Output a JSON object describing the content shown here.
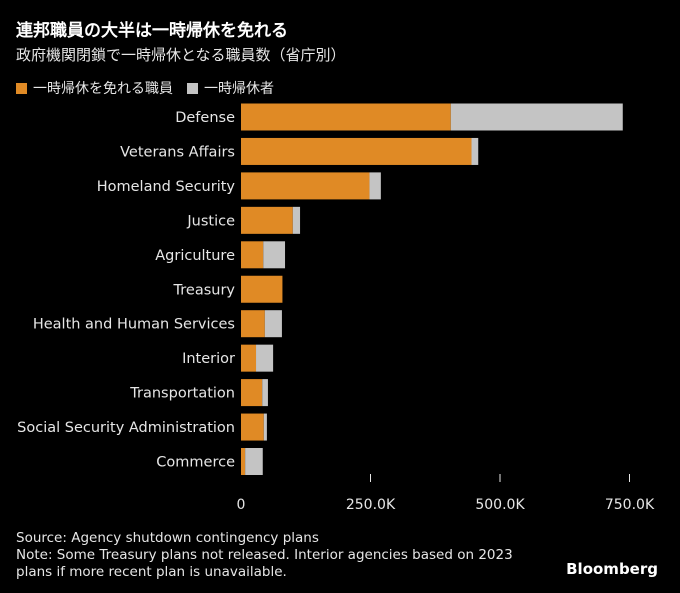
{
  "header": {
    "title": "連邦職員の大半は一時帰休を免れる",
    "subtitle": "政府機関閉鎖で一時帰休となる職員数（省庁別）"
  },
  "legend": [
    {
      "label": "一時帰休を免れる職員",
      "color": "#E08A25"
    },
    {
      "label": "一時帰休者",
      "color": "#C4C4C4"
    }
  ],
  "chart_data": {
    "type": "bar",
    "orientation": "horizontal",
    "stacked": true,
    "title": "連邦職員の大半は一時帰休を免れる",
    "subtitle": "政府機関閉鎖で一時帰休となる職員数（省庁別）",
    "categories": [
      "Defense",
      "Veterans Affairs",
      "Homeland Security",
      "Justice",
      "Agriculture",
      "Treasury",
      "Health and Human Services",
      "Interior",
      "Transportation",
      "Social Security Administration",
      "Commerce"
    ],
    "series": [
      {
        "name": "一時帰休を免れる職員",
        "color": "#E08A25",
        "values": [
          405000,
          445000,
          248000,
          100000,
          43000,
          80000,
          46000,
          29000,
          41000,
          44000,
          8000
        ]
      },
      {
        "name": "一時帰休者",
        "color": "#C4C4C4",
        "values": [
          332000,
          13000,
          22000,
          14000,
          42000,
          0,
          33000,
          33000,
          11000,
          6000,
          34000
        ]
      }
    ],
    "xlim": [
      0,
      800000
    ],
    "xticks": [
      0,
      250000,
      500000,
      750000
    ],
    "xtick_labels": [
      "0",
      "250.0K",
      "500.0K",
      "750.0K"
    ],
    "xlabel": "",
    "ylabel": "",
    "grid": false,
    "legend_position": "top-left"
  },
  "footer": {
    "source": "Source: Agency shutdown contingency plans",
    "note_line1": "Note: Some Treasury plans not released. Interior agencies based on 2023",
    "note_line2": "plans if more recent plan is unavailable.",
    "brand": "Bloomberg"
  }
}
